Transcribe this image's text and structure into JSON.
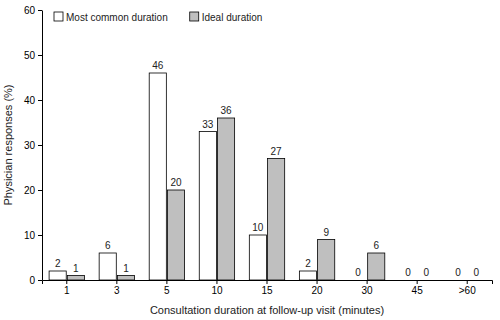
{
  "chart_data": {
    "type": "bar",
    "x_label": "Consultation duration at follow-up visit (minutes)",
    "y_label": "Physician responses (%)",
    "categories": [
      "1",
      "3",
      "5",
      "10",
      "15",
      "20",
      "30",
      "45",
      ">60"
    ],
    "series": [
      {
        "name": "Most common duration",
        "color": "#ffffff",
        "values": [
          2,
          6,
          46,
          33,
          10,
          2,
          0,
          0,
          0
        ]
      },
      {
        "name": "Ideal duration",
        "color": "#bfbfbf",
        "values": [
          1,
          1,
          20,
          36,
          27,
          9,
          6,
          0,
          0
        ]
      }
    ],
    "ylim": [
      0,
      60
    ],
    "yticks": [
      0,
      10,
      20,
      30,
      40,
      50,
      60
    ],
    "grid": false,
    "legend": "upper left",
    "data_labels": true
  }
}
